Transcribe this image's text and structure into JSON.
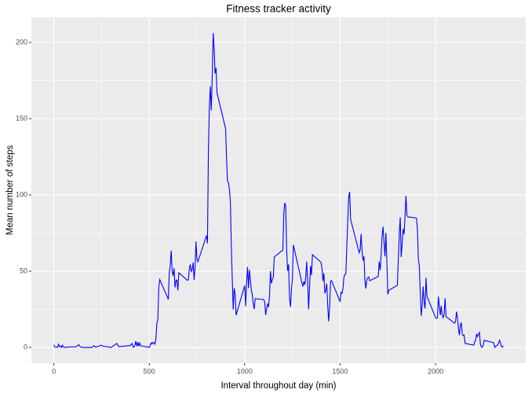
{
  "chart_data": {
    "type": "line",
    "title": "Fitness tracker activity",
    "x_label": "Interval throughout day (min)",
    "y_label": "Mean number of steps",
    "xlim": [
      -117.5,
      2472.5
    ],
    "ylim": [
      -10.3,
      216.5
    ],
    "xticks": [
      0,
      500,
      1000,
      1500,
      2000
    ],
    "yticks": [
      0,
      50,
      100,
      150,
      200
    ],
    "grid": true,
    "minor_grid": true,
    "panel_color": "#ebebeb",
    "series": [
      {
        "name": "Mean number of steps",
        "color": "#0000ff",
        "x": [
          0,
          5,
          10,
          15,
          20,
          25,
          30,
          35,
          40,
          45,
          50,
          55,
          100,
          110,
          125,
          130,
          140,
          155,
          200,
          210,
          220,
          250,
          255,
          300,
          330,
          340,
          400,
          410,
          415,
          420,
          425,
          430,
          435,
          440,
          445,
          450,
          455,
          500,
          505,
          510,
          515,
          520,
          525,
          530,
          535,
          540,
          545,
          550,
          555,
          600,
          605,
          610,
          615,
          620,
          625,
          630,
          635,
          640,
          645,
          650,
          655,
          700,
          705,
          710,
          715,
          720,
          725,
          730,
          735,
          740,
          745,
          750,
          755,
          800,
          805,
          810,
          815,
          820,
          825,
          830,
          835,
          840,
          845,
          850,
          855,
          900,
          905,
          910,
          915,
          920,
          925,
          930,
          935,
          940,
          945,
          950,
          955,
          1000,
          1005,
          1010,
          1015,
          1020,
          1025,
          1030,
          1035,
          1040,
          1045,
          1050,
          1055,
          1100,
          1105,
          1110,
          1115,
          1120,
          1125,
          1130,
          1135,
          1140,
          1145,
          1150,
          1155,
          1200,
          1205,
          1210,
          1215,
          1220,
          1225,
          1230,
          1235,
          1240,
          1245,
          1250,
          1255,
          1300,
          1305,
          1310,
          1315,
          1320,
          1325,
          1330,
          1335,
          1340,
          1345,
          1350,
          1355,
          1400,
          1405,
          1410,
          1415,
          1420,
          1425,
          1430,
          1435,
          1440,
          1445,
          1450,
          1455,
          1500,
          1505,
          1510,
          1515,
          1520,
          1525,
          1530,
          1535,
          1540,
          1545,
          1550,
          1555,
          1600,
          1605,
          1610,
          1615,
          1620,
          1625,
          1630,
          1635,
          1640,
          1645,
          1650,
          1655,
          1700,
          1705,
          1710,
          1715,
          1720,
          1725,
          1730,
          1735,
          1740,
          1745,
          1750,
          1755,
          1800,
          1805,
          1810,
          1815,
          1820,
          1825,
          1830,
          1835,
          1840,
          1845,
          1850,
          1855,
          1900,
          1905,
          1910,
          1915,
          1920,
          1925,
          1930,
          1935,
          1940,
          1945,
          1950,
          1955,
          2000,
          2005,
          2010,
          2015,
          2020,
          2025,
          2030,
          2035,
          2040,
          2045,
          2050,
          2055,
          2100,
          2105,
          2110,
          2115,
          2120,
          2125,
          2130,
          2135,
          2140,
          2145,
          2150,
          2155,
          2200,
          2205,
          2210,
          2215,
          2220,
          2225,
          2230,
          2235,
          2240,
          2245,
          2250,
          2255,
          2300,
          2305,
          2310,
          2315,
          2320,
          2325,
          2330,
          2335,
          2340,
          2345,
          2350,
          2355
        ],
        "values": [
          1.7,
          0.3,
          0.1,
          0.2,
          0.1,
          2.1,
          0.5,
          0.9,
          0,
          1.5,
          0.3,
          0.1,
          0.4,
          0.2,
          1.1,
          1.8,
          0.2,
          0,
          0,
          1.1,
          0.2,
          1.5,
          0.9,
          0,
          2.6,
          0.5,
          1.2,
          2.6,
          0.2,
          0.3,
          1.4,
          4.1,
          0.7,
          3.5,
          0.8,
          3,
          1.1,
          0,
          1.5,
          3,
          2.2,
          3.3,
          3,
          2.1,
          6,
          16,
          18.3,
          39.5,
          44.5,
          31.5,
          49.3,
          53.8,
          63.5,
          50,
          47,
          52,
          39.3,
          44,
          44.2,
          37.4,
          49,
          44,
          44.5,
          51,
          54.5,
          49.9,
          50.9,
          55.7,
          44.3,
          52.3,
          69.5,
          57.8,
          56.2,
          73.4,
          68.2,
          129.4,
          157.5,
          171.2,
          155.4,
          177.3,
          206.2,
          195.9,
          179.6,
          183.4,
          167,
          143.5,
          124,
          109.1,
          108.1,
          103.7,
          95.9,
          66.2,
          45.2,
          24.8,
          38.8,
          35,
          21.1,
          40.6,
          27,
          42.4,
          52.7,
          38.9,
          50.8,
          44.3,
          37.4,
          34.7,
          28.3,
          25.1,
          31.9,
          31.4,
          29.7,
          21.3,
          25.5,
          28.4,
          26.5,
          33.4,
          50,
          42,
          44.6,
          46,
          59.3,
          63.9,
          87.7,
          94.8,
          92.8,
          63.4,
          50.2,
          54.5,
          32.4,
          26.5,
          37.7,
          45.1,
          67.3,
          42.3,
          39.9,
          43.3,
          41,
          46.2,
          56.4,
          42.8,
          25.1,
          40,
          53.5,
          47.3,
          60.8,
          55.8,
          52,
          43.6,
          48.7,
          35.5,
          37.5,
          41.8,
          27.5,
          17.1,
          26.1,
          43.6,
          43.8,
          30,
          36.1,
          35.5,
          38.8,
          46,
          47.8,
          48.1,
          65.3,
          82.9,
          98.7,
          102.1,
          84,
          62.1,
          64.1,
          74.5,
          63.2,
          56.9,
          59.8,
          43.9,
          38.6,
          44.7,
          45.5,
          46.2,
          43.7,
          46.6,
          56.3,
          50.7,
          61.2,
          73.4,
          79.1,
          68.9,
          59.7,
          75.1,
          56.5,
          34.8,
          37.5,
          40.7,
          58,
          74.7,
          85.3,
          59.3,
          67.8,
          77.7,
          74.2,
          85.3,
          99.5,
          86.6,
          85.6,
          84.9,
          77.8,
          58,
          53.4,
          36.3,
          20.7,
          27.4,
          40,
          30.2,
          25.5,
          45.7,
          33.5,
          19.6,
          19,
          19.3,
          33.3,
          26.8,
          21.2,
          27.3,
          21.3,
          19.5,
          21.3,
          32.3,
          20.2,
          15.9,
          17.2,
          23.5,
          19.2,
          12.5,
          8,
          14.7,
          16.3,
          8.7,
          7.8,
          8.1,
          2.6,
          1.5,
          3.7,
          4.8,
          8.5,
          7.1,
          8.7,
          9.8,
          2.2,
          0.3,
          0.1,
          1.6,
          4.6,
          3.3,
          2.8,
          0,
          0.8,
          1,
          1.6,
          2.6,
          4.7,
          3.3,
          0.6,
          0.2,
          1.1
        ]
      }
    ]
  }
}
